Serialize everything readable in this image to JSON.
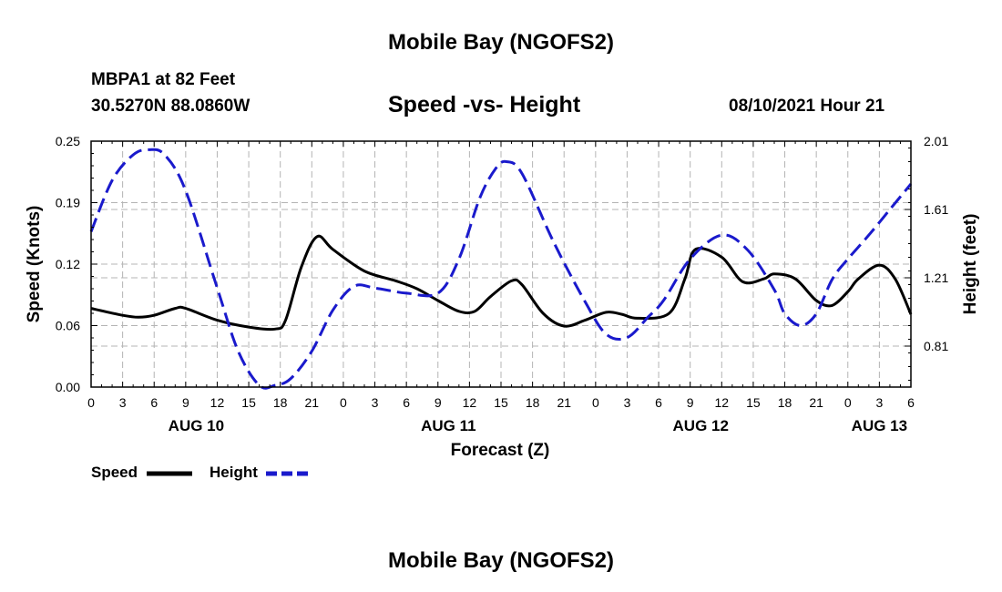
{
  "header": {
    "title": "Mobile Bay (NGOFS2)",
    "station": "MBPA1 at 82 Feet",
    "coords": "30.5270N  88.0860W",
    "chart_title": "Speed -vs- Height",
    "datetime": "08/10/2021 Hour 21"
  },
  "footer": {
    "title": "Mobile Bay (NGOFS2)"
  },
  "legend": {
    "speed": "Speed",
    "height": "Height"
  },
  "colors": {
    "speed": "#000000",
    "height": "#1a1acc",
    "grid": "#b4b4b4"
  },
  "chart_data": {
    "type": "line",
    "title": "Speed -vs- Height",
    "xlabel": "Forecast (Z)",
    "ylabel": "Speed (Knots)",
    "y2label": "Height (feet)",
    "x_range_hours": [
      0,
      78
    ],
    "ylim": [
      0,
      0.25
    ],
    "y2lim": [
      0.57,
      2.01
    ],
    "y_ticks": [
      "0.00",
      "0.06",
      "0.12",
      "0.19",
      "0.25"
    ],
    "y2_ticks": [
      "0.81",
      "1.21",
      "1.61",
      "2.01"
    ],
    "x_ticks": [
      "0",
      "3",
      "6",
      "9",
      "12",
      "15",
      "18",
      "21",
      "0",
      "3",
      "6",
      "9",
      "12",
      "15",
      "18",
      "21",
      "0",
      "3",
      "6",
      "9",
      "12",
      "15",
      "18",
      "21",
      "0",
      "3",
      "6"
    ],
    "date_labels": [
      {
        "label": "AUG 10",
        "hour": 10
      },
      {
        "label": "AUG 11",
        "hour": 34
      },
      {
        "label": "AUG 12",
        "hour": 58
      },
      {
        "label": "AUG 13",
        "hour": 75
      }
    ],
    "series": [
      {
        "name": "Speed",
        "axis": "left",
        "x": [
          0,
          3,
          4.5,
          6,
          8,
          9,
          12,
          15,
          17.5,
          18.5,
          20,
          21.5,
          23,
          26,
          29,
          31,
          33,
          35,
          36.5,
          38,
          40,
          41,
          43,
          45,
          47,
          49,
          50.5,
          52,
          55,
          56.5,
          57.5,
          60,
          62,
          64,
          65,
          67,
          69,
          70.5,
          72,
          73,
          75,
          76.5,
          78
        ],
        "values": [
          0.08,
          0.073,
          0.071,
          0.073,
          0.08,
          0.08,
          0.068,
          0.061,
          0.059,
          0.068,
          0.122,
          0.153,
          0.14,
          0.118,
          0.108,
          0.1,
          0.088,
          0.077,
          0.077,
          0.092,
          0.108,
          0.104,
          0.075,
          0.062,
          0.068,
          0.076,
          0.074,
          0.07,
          0.075,
          0.11,
          0.14,
          0.132,
          0.107,
          0.11,
          0.115,
          0.11,
          0.088,
          0.083,
          0.097,
          0.11,
          0.124,
          0.11,
          0.074
        ]
      },
      {
        "name": "Height",
        "axis": "right",
        "x": [
          0,
          2,
          4,
          5.5,
          7,
          9,
          12,
          14,
          16,
          17.5,
          19,
          21,
          23,
          25,
          27,
          30,
          33,
          35,
          37,
          38.5,
          39.5,
          41,
          44,
          47,
          49,
          51,
          53,
          54.5,
          57,
          60,
          62.5,
          65,
          66,
          67.5,
          69,
          70.5,
          72,
          74,
          76,
          78
        ],
        "values": [
          1.48,
          1.78,
          1.93,
          1.96,
          1.93,
          1.72,
          1.15,
          0.78,
          0.58,
          0.58,
          0.62,
          0.78,
          1.02,
          1.16,
          1.15,
          1.12,
          1.12,
          1.32,
          1.68,
          1.85,
          1.89,
          1.82,
          1.42,
          1.07,
          0.88,
          0.86,
          0.98,
          1.08,
          1.32,
          1.46,
          1.37,
          1.14,
          1.0,
          0.93,
          1.0,
          1.2,
          1.32,
          1.46,
          1.61,
          1.76
        ]
      }
    ]
  }
}
